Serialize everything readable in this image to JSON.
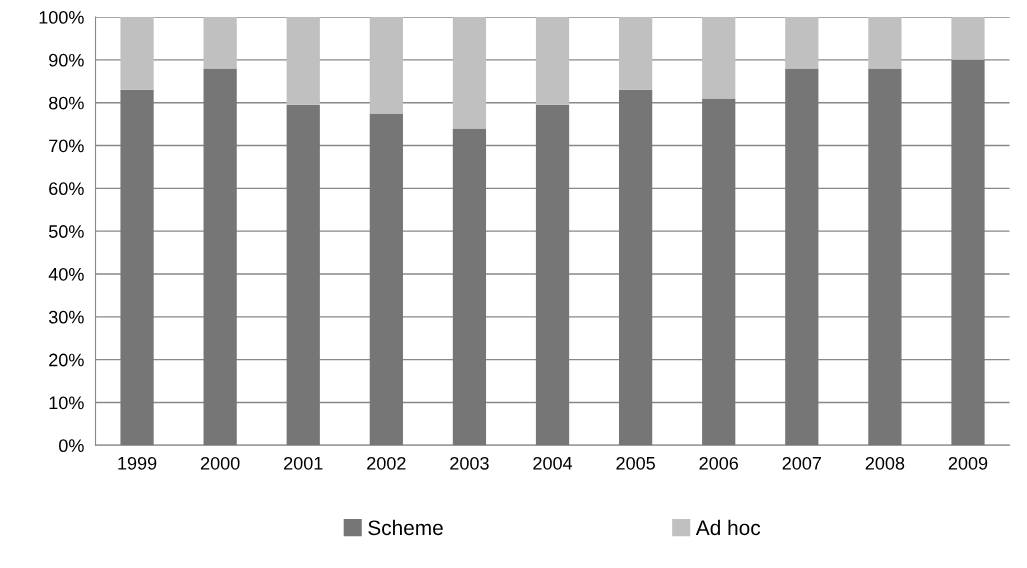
{
  "chart_data": {
    "type": "bar",
    "stacked": true,
    "categories": [
      "1999",
      "2000",
      "2001",
      "2002",
      "2003",
      "2004",
      "2005",
      "2006",
      "2007",
      "2008",
      "2009"
    ],
    "series": [
      {
        "name": "Scheme",
        "color": "#767676",
        "values": [
          83,
          88,
          79.5,
          77.5,
          74,
          79.5,
          83,
          81,
          88,
          88,
          90
        ]
      },
      {
        "name": "Ad hoc",
        "color": "#c0c0c0",
        "values": [
          17,
          12,
          20.5,
          22.5,
          26,
          20.5,
          17,
          19,
          12,
          12,
          10
        ]
      }
    ],
    "ylim": [
      0,
      100
    ],
    "yticks": [
      {
        "value": 0,
        "label": "0%"
      },
      {
        "value": 10,
        "label": "10%"
      },
      {
        "value": 20,
        "label": "20%"
      },
      {
        "value": 30,
        "label": "30%"
      },
      {
        "value": 40,
        "label": "40%"
      },
      {
        "value": 50,
        "label": "50%"
      },
      {
        "value": 60,
        "label": "60%"
      },
      {
        "value": 70,
        "label": "70%"
      },
      {
        "value": 80,
        "label": "80%"
      },
      {
        "value": 90,
        "label": "90%"
      },
      {
        "value": 100,
        "label": "100%"
      }
    ],
    "grid": "y",
    "legend": "bottom"
  }
}
